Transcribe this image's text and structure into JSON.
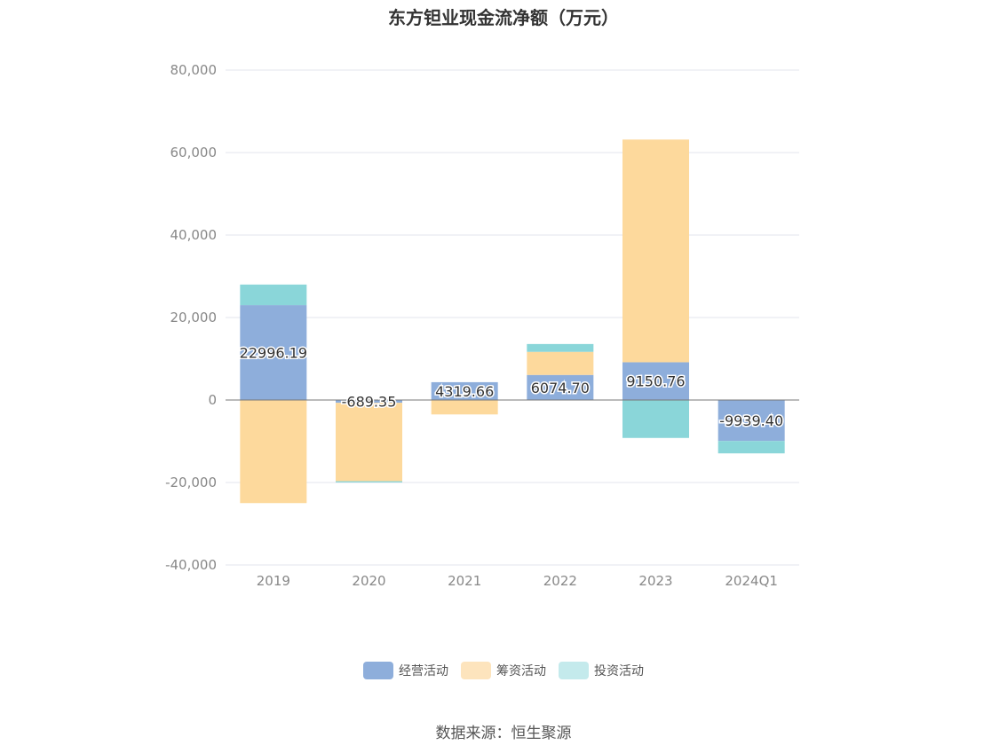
{
  "title": "东方钽业现金流净额（万元）",
  "source": "数据来源：恒生聚源",
  "chart_data": {
    "type": "bar",
    "stacked": true,
    "title": "东方钽业现金流净额（万元）",
    "categories": [
      "2019",
      "2020",
      "2021",
      "2022",
      "2023",
      "2024Q1"
    ],
    "ylim": [
      -40000,
      80000
    ],
    "yticks": [
      80000,
      60000,
      40000,
      20000,
      0,
      -20000,
      -40000
    ],
    "ytick_labels": [
      "80,000",
      "60,000",
      "40,000",
      "20,000",
      "0",
      "-20,000",
      "-40,000"
    ],
    "grid": true,
    "legend_position": "bottom",
    "series": [
      {
        "name": "经营活动",
        "color": "#8eaedb",
        "values": [
          22996.19,
          -689.35,
          4319.66,
          6074.7,
          9150.76,
          -9939.4
        ],
        "labels": [
          "22996.19",
          "-689.35",
          "4319.66",
          "6074.70",
          "9150.76",
          "-9939.40"
        ]
      },
      {
        "name": "筹资活动",
        "color": "#fdd99c",
        "values": [
          -25000,
          -19000,
          -3500,
          5600,
          54000,
          0
        ]
      },
      {
        "name": "投资活动",
        "color": "#8ad6d9",
        "values": [
          5000,
          -300,
          0,
          1900,
          -9200,
          -3000
        ]
      }
    ]
  },
  "legend": {
    "items": [
      {
        "label": "经营活动",
        "color": "#8eaedb"
      },
      {
        "label": "筹资活动",
        "color": "#fde4bd"
      },
      {
        "label": "投资活动",
        "color": "#c4eaec"
      }
    ]
  }
}
